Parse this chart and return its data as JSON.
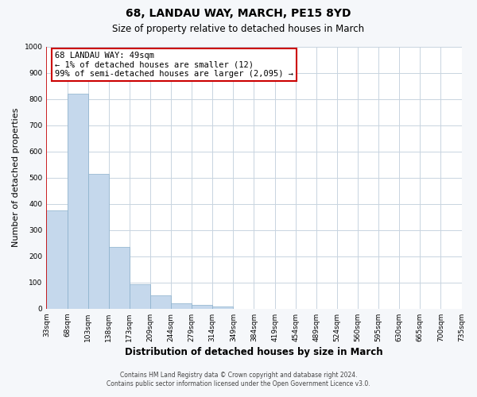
{
  "title": "68, LANDAU WAY, MARCH, PE15 8YD",
  "subtitle": "Size of property relative to detached houses in March",
  "xlabel": "Distribution of detached houses by size in March",
  "ylabel": "Number of detached properties",
  "bar_values": [
    375,
    820,
    515,
    235,
    93,
    52,
    20,
    15,
    8,
    0,
    0,
    0,
    0,
    0,
    0,
    0,
    0,
    0,
    0,
    0
  ],
  "x_labels": [
    "33sqm",
    "68sqm",
    "103sqm",
    "138sqm",
    "173sqm",
    "209sqm",
    "244sqm",
    "279sqm",
    "314sqm",
    "349sqm",
    "384sqm",
    "419sqm",
    "454sqm",
    "489sqm",
    "524sqm",
    "560sqm",
    "595sqm",
    "630sqm",
    "665sqm",
    "700sqm",
    "735sqm"
  ],
  "bar_color": "#c5d8ec",
  "bar_edge_color": "#8ab0cc",
  "ylim": [
    0,
    1000
  ],
  "red_line_x": 0,
  "annotation_text": "68 LANDAU WAY: 49sqm\n← 1% of detached houses are smaller (12)\n99% of semi-detached houses are larger (2,095) →",
  "annotation_box_color": "#ffffff",
  "annotation_box_edge": "#cc0000",
  "footer_line1": "Contains HM Land Registry data © Crown copyright and database right 2024.",
  "footer_line2": "Contains public sector information licensed under the Open Government Licence v3.0.",
  "bg_color": "#f5f7fa",
  "plot_bg_color": "#ffffff",
  "grid_color": "#c8d4e0"
}
